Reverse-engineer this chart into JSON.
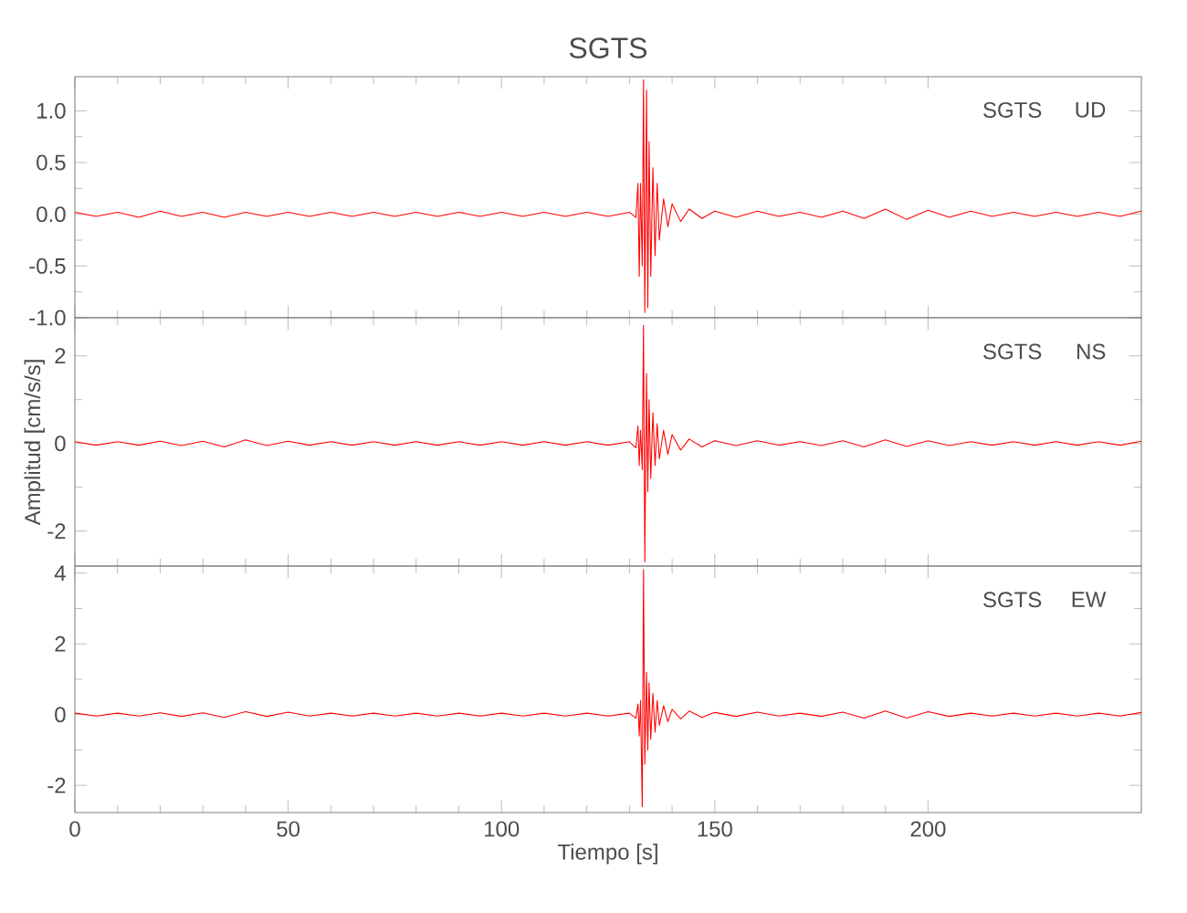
{
  "chart_data": [
    {
      "type": "line",
      "title": "SGTS",
      "annotations": [
        "SGTS",
        "UD"
      ],
      "color": "#ff0000",
      "xlim": [
        0,
        250
      ],
      "xticks": [
        0,
        50,
        100,
        150,
        200
      ],
      "ylim": [
        -1.0,
        1.33
      ],
      "yticks": [
        {
          "value": -1.0,
          "label": "-1.0"
        },
        {
          "value": -0.5,
          "label": "-0.5"
        },
        {
          "value": 0.0,
          "label": "0.0"
        },
        {
          "value": 0.5,
          "label": "0.5"
        },
        {
          "value": 1.0,
          "label": "1.0"
        }
      ],
      "tick_labels": "y",
      "x": [
        0,
        5,
        10,
        15,
        20,
        25,
        30,
        35,
        40,
        45,
        50,
        55,
        60,
        65,
        70,
        75,
        80,
        85,
        90,
        95,
        100,
        105,
        110,
        115,
        120,
        125,
        130,
        131.5,
        132.0,
        132.3,
        132.6,
        133.0,
        133.3,
        133.6,
        134.0,
        134.3,
        134.6,
        135.0,
        135.5,
        136.0,
        136.5,
        137.0,
        138,
        139,
        140,
        142,
        144,
        147,
        150,
        155,
        160,
        165,
        170,
        175,
        180,
        185,
        190,
        195,
        200,
        205,
        210,
        215,
        220,
        225,
        230,
        235,
        240,
        245,
        250
      ],
      "values": [
        0.02,
        -0.02,
        0.02,
        -0.03,
        0.03,
        -0.02,
        0.02,
        -0.03,
        0.02,
        -0.02,
        0.02,
        -0.02,
        0.02,
        -0.02,
        0.02,
        -0.02,
        0.02,
        -0.02,
        0.02,
        -0.02,
        0.02,
        -0.02,
        0.02,
        -0.02,
        0.02,
        -0.02,
        0.02,
        -0.03,
        0.3,
        -0.6,
        0.3,
        -0.5,
        1.3,
        -0.95,
        1.2,
        -0.9,
        0.7,
        -0.6,
        0.45,
        -0.4,
        0.3,
        -0.25,
        0.15,
        -0.12,
        0.1,
        -0.07,
        0.05,
        -0.04,
        0.03,
        -0.03,
        0.03,
        -0.02,
        0.02,
        -0.03,
        0.03,
        -0.04,
        0.05,
        -0.05,
        0.04,
        -0.03,
        0.03,
        -0.02,
        0.02,
        -0.02,
        0.02,
        -0.02,
        0.02,
        -0.02,
        0.03
      ]
    },
    {
      "type": "line",
      "ylabel": "Amplitud [cm/s/s]",
      "annotations": [
        "SGTS",
        "NS"
      ],
      "color": "#ff0000",
      "xlim": [
        0,
        250
      ],
      "xticks": [
        0,
        50,
        100,
        150,
        200
      ],
      "ylim": [
        -2.8,
        2.87
      ],
      "yticks": [
        -2,
        0,
        2
      ],
      "tick_labels": "y",
      "x": [
        0,
        5,
        10,
        15,
        20,
        25,
        30,
        35,
        40,
        45,
        50,
        55,
        60,
        65,
        70,
        75,
        80,
        85,
        90,
        95,
        100,
        105,
        110,
        115,
        120,
        125,
        130,
        131.5,
        132.0,
        132.3,
        132.6,
        133.0,
        133.3,
        133.6,
        134.0,
        134.3,
        134.6,
        135.0,
        135.5,
        136.0,
        136.5,
        137.0,
        138,
        139,
        140,
        142,
        144,
        147,
        150,
        155,
        160,
        165,
        170,
        175,
        180,
        185,
        190,
        195,
        200,
        205,
        210,
        215,
        220,
        225,
        230,
        235,
        240,
        245,
        250
      ],
      "values": [
        0.04,
        -0.04,
        0.04,
        -0.04,
        0.05,
        -0.05,
        0.05,
        -0.08,
        0.08,
        -0.05,
        0.05,
        -0.04,
        0.04,
        -0.04,
        0.04,
        -0.04,
        0.04,
        -0.04,
        0.04,
        -0.04,
        0.04,
        -0.04,
        0.04,
        -0.04,
        0.04,
        -0.04,
        0.04,
        -0.1,
        0.4,
        -0.5,
        0.3,
        -0.6,
        2.7,
        -2.7,
        1.6,
        -1.1,
        1.0,
        -0.8,
        0.7,
        -0.5,
        0.45,
        -0.35,
        0.3,
        -0.25,
        0.2,
        -0.15,
        0.1,
        -0.08,
        0.06,
        -0.05,
        0.06,
        -0.04,
        0.04,
        -0.05,
        0.06,
        -0.08,
        0.08,
        -0.07,
        0.06,
        -0.05,
        0.04,
        -0.04,
        0.04,
        -0.04,
        0.04,
        -0.04,
        0.04,
        -0.04,
        0.05
      ]
    },
    {
      "type": "line",
      "xlabel": "Tiempo [s]",
      "annotations": [
        "SGTS",
        "EW"
      ],
      "color": "#ff0000",
      "xlim": [
        0,
        250
      ],
      "xticks": [
        0,
        50,
        100,
        150,
        200
      ],
      "ylim": [
        -2.77,
        4.2
      ],
      "yticks": [
        -2,
        0,
        2,
        4
      ],
      "x": [
        0,
        5,
        10,
        15,
        20,
        25,
        30,
        35,
        40,
        45,
        50,
        55,
        60,
        65,
        70,
        75,
        80,
        85,
        90,
        95,
        100,
        105,
        110,
        115,
        120,
        125,
        130,
        131.5,
        132.0,
        132.3,
        132.6,
        133.0,
        133.3,
        133.6,
        134.0,
        134.3,
        134.6,
        135.0,
        135.5,
        136.0,
        136.5,
        137.0,
        138,
        139,
        140,
        142,
        144,
        147,
        150,
        155,
        160,
        165,
        170,
        175,
        180,
        185,
        190,
        195,
        200,
        205,
        210,
        215,
        220,
        225,
        230,
        235,
        240,
        245,
        250
      ],
      "values": [
        0.04,
        -0.04,
        0.04,
        -0.04,
        0.05,
        -0.05,
        0.05,
        -0.08,
        0.08,
        -0.05,
        0.07,
        -0.04,
        0.04,
        -0.04,
        0.04,
        -0.04,
        0.04,
        -0.04,
        0.04,
        -0.04,
        0.04,
        -0.04,
        0.04,
        -0.04,
        0.04,
        -0.04,
        0.04,
        -0.1,
        0.3,
        -0.6,
        0.4,
        -2.6,
        4.1,
        -1.4,
        1.2,
        -1.0,
        0.9,
        -0.7,
        0.6,
        -0.5,
        0.4,
        -0.3,
        0.25,
        -0.2,
        0.15,
        -0.12,
        0.1,
        -0.08,
        0.06,
        -0.05,
        0.07,
        -0.04,
        0.04,
        -0.05,
        0.07,
        -0.1,
        0.1,
        -0.1,
        0.08,
        -0.05,
        0.04,
        -0.04,
        0.04,
        -0.04,
        0.04,
        -0.04,
        0.04,
        -0.04,
        0.06
      ]
    }
  ]
}
